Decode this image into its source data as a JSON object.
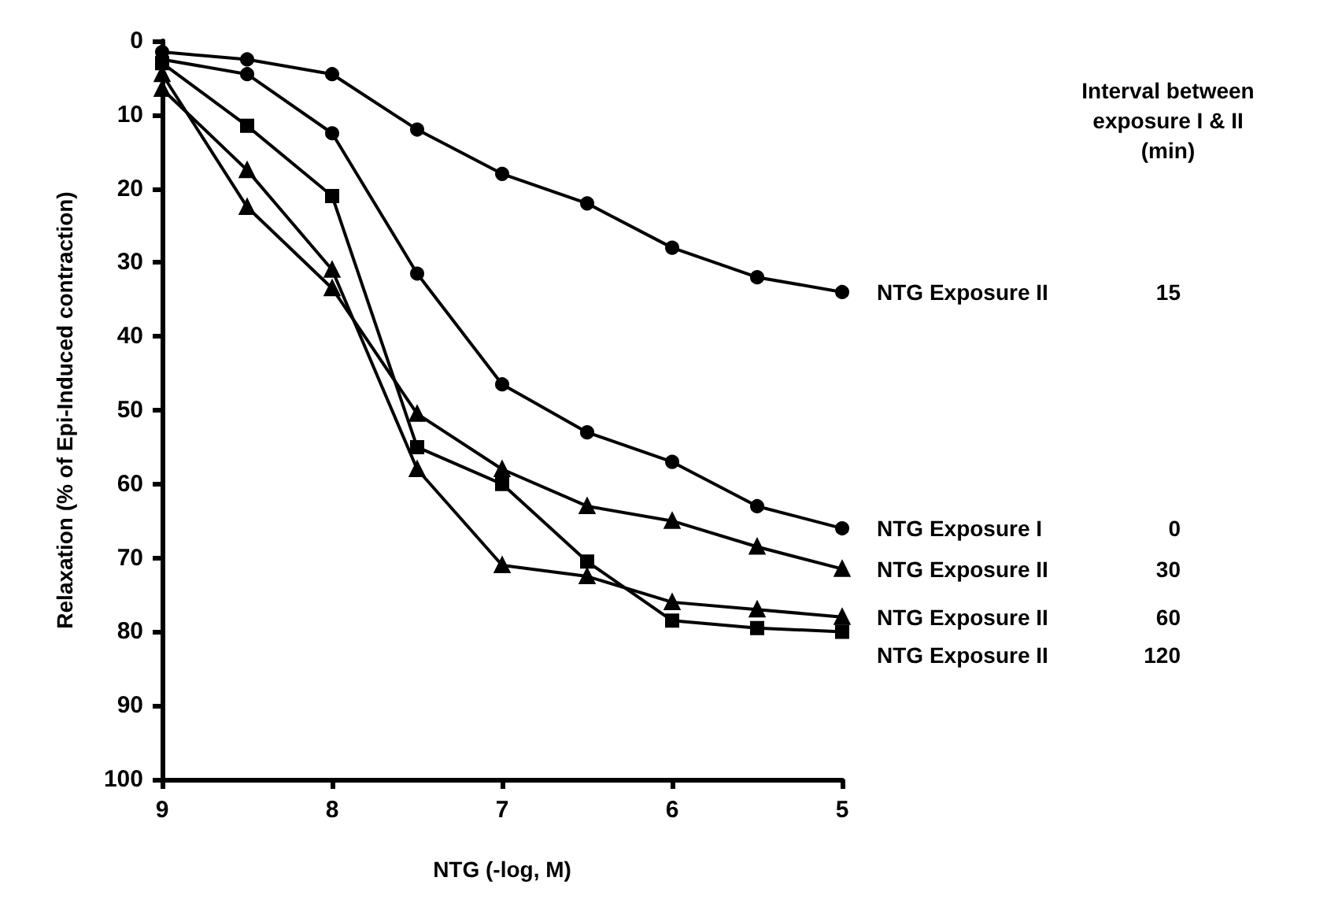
{
  "chart_data": {
    "type": "line",
    "xlabel": "NTG (-log, M)",
    "ylabel": "Relaxation (% of Epi-Induced contraction)",
    "legend_title": "Interval between exposure I & II (min)",
    "x": [
      9,
      8.5,
      8,
      7.5,
      7,
      6.5,
      6,
      5.5,
      5
    ],
    "xlim": [
      9,
      5
    ],
    "xticks": [
      9,
      8,
      7,
      6,
      5
    ],
    "ylim": [
      100,
      0
    ],
    "yticks": [
      0,
      10,
      20,
      30,
      40,
      50,
      60,
      70,
      80,
      90,
      100
    ],
    "grid": false,
    "legend": "right",
    "line_style": "solid",
    "series": [
      {
        "name": "NTG Exposure II",
        "color": "#000000",
        "marker": "circle",
        "values": [
          1.5,
          2.5,
          4.5,
          12,
          18,
          22,
          28,
          32,
          34
        ]
      },
      {
        "name": "NTG Exposure I",
        "color": "#000000",
        "marker": "circle",
        "values": [
          2.5,
          4.5,
          12.5,
          31.5,
          46.5,
          53,
          57,
          63,
          66
        ]
      },
      {
        "name": "NTG Exposure II",
        "color": "#000000",
        "marker": "triangle",
        "values": [
          4.5,
          22.5,
          33.5,
          50.5,
          58,
          63,
          65,
          68.5,
          71.5
        ]
      },
      {
        "name": "NTG Exposure II",
        "color": "#000000",
        "marker": "triangle",
        "values": [
          6.5,
          17.5,
          31,
          58,
          71,
          72.5,
          76,
          77,
          78
        ]
      },
      {
        "name": "NTG Exposure II",
        "color": "#000000",
        "marker": "square",
        "values": [
          3,
          11.5,
          21,
          55,
          60,
          70.5,
          78.5,
          79.5,
          80
        ]
      }
    ],
    "annotations": [
      "15",
      "0",
      "30",
      "60",
      "120"
    ]
  }
}
